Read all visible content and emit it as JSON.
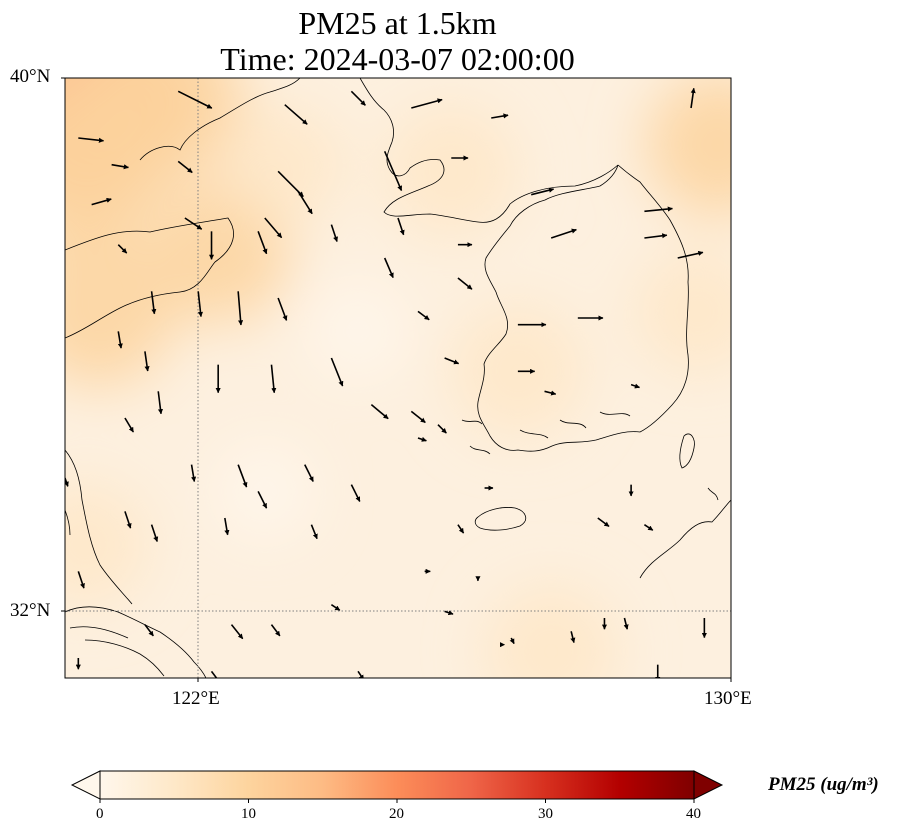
{
  "title": {
    "line1": "PM25 at 1.5km",
    "line2": "Time: 2024-03-07 02:00:00"
  },
  "map": {
    "lon_range": [
      120,
      130
    ],
    "lat_range": [
      31,
      40
    ],
    "lat_ticks": [
      {
        "value": 40,
        "label": "40°N"
      },
      {
        "value": 32,
        "label": "32°N"
      }
    ],
    "lon_ticks": [
      {
        "value": 122,
        "label": "122°E"
      },
      {
        "value": 130,
        "label": "130°E"
      }
    ],
    "gridlines": {
      "lons": [
        122
      ],
      "lats": [
        32
      ],
      "style": "dotted"
    }
  },
  "colorbar": {
    "label": "PM25 (ug/m³)",
    "min": 0,
    "max": 40,
    "ticks": [
      "0",
      "10",
      "20",
      "30",
      "40"
    ],
    "colormap": "OrRd",
    "extend": "both",
    "colors": [
      "#fff7ec",
      "#fee8c8",
      "#fdd49e",
      "#fdbb84",
      "#fc8d59",
      "#ef6548",
      "#d7301f",
      "#b30000",
      "#7f0000"
    ]
  },
  "field": {
    "background": "#fdf0df",
    "patches": [
      {
        "lon": 120.4,
        "lat": 39.6,
        "value": 16
      },
      {
        "lon": 120.2,
        "lat": 38.6,
        "value": 11
      },
      {
        "lon": 121.5,
        "lat": 39.7,
        "value": 10
      },
      {
        "lon": 120.5,
        "lat": 36.5,
        "value": 9
      },
      {
        "lon": 122.3,
        "lat": 37.4,
        "value": 8
      },
      {
        "lon": 125.8,
        "lat": 38.6,
        "value": 7
      },
      {
        "lon": 129.8,
        "lat": 39.0,
        "value": 8
      },
      {
        "lon": 129.5,
        "lat": 36.5,
        "value": 6
      },
      {
        "lon": 126.8,
        "lat": 35.6,
        "value": 7
      },
      {
        "lon": 127.3,
        "lat": 31.4,
        "value": 7
      },
      {
        "lon": 120.3,
        "lat": 33.0,
        "value": 6
      },
      {
        "lon": 123.3,
        "lat": 38.7,
        "value": 5
      },
      {
        "lon": 124.4,
        "lat": 36.2,
        "value": 2
      },
      {
        "lon": 123.0,
        "lat": 33.8,
        "value": 2
      }
    ]
  },
  "wind": [
    {
      "lon": 121.7,
      "lat": 39.8,
      "u": 1.2,
      "v": -0.6
    },
    {
      "lon": 123.3,
      "lat": 39.6,
      "u": 0.8,
      "v": -0.7
    },
    {
      "lon": 124.3,
      "lat": 39.8,
      "u": 0.5,
      "v": -0.5
    },
    {
      "lon": 125.2,
      "lat": 39.55,
      "u": 1.1,
      "v": 0.3
    },
    {
      "lon": 126.4,
      "lat": 39.4,
      "u": 0.6,
      "v": 0.1
    },
    {
      "lon": 129.4,
      "lat": 39.55,
      "u": 0.1,
      "v": 0.7
    },
    {
      "lon": 120.2,
      "lat": 39.1,
      "u": 0.9,
      "v": -0.1
    },
    {
      "lon": 120.7,
      "lat": 38.7,
      "u": 0.6,
      "v": -0.1
    },
    {
      "lon": 121.7,
      "lat": 38.75,
      "u": 0.5,
      "v": -0.4
    },
    {
      "lon": 123.2,
      "lat": 38.6,
      "u": 0.9,
      "v": -0.9
    },
    {
      "lon": 124.8,
      "lat": 38.9,
      "u": 0.6,
      "v": -1.4
    },
    {
      "lon": 125.8,
      "lat": 38.8,
      "u": 0.6,
      "v": 0.0
    },
    {
      "lon": 127.0,
      "lat": 38.25,
      "u": 0.8,
      "v": 0.2
    },
    {
      "lon": 123.5,
      "lat": 38.3,
      "u": 0.5,
      "v": -0.8
    },
    {
      "lon": 128.7,
      "lat": 38.0,
      "u": 1.0,
      "v": 0.1
    },
    {
      "lon": 120.4,
      "lat": 38.1,
      "u": 0.7,
      "v": 0.2
    },
    {
      "lon": 123.0,
      "lat": 37.9,
      "u": 0.6,
      "v": -0.7
    },
    {
      "lon": 121.8,
      "lat": 37.9,
      "u": 0.6,
      "v": -0.4
    },
    {
      "lon": 125.0,
      "lat": 37.9,
      "u": 0.2,
      "v": -0.6
    },
    {
      "lon": 122.2,
      "lat": 37.7,
      "u": 0.0,
      "v": -1.0
    },
    {
      "lon": 120.8,
      "lat": 37.5,
      "u": 0.3,
      "v": -0.3
    },
    {
      "lon": 122.9,
      "lat": 37.7,
      "u": 0.3,
      "v": -0.8
    },
    {
      "lon": 124.0,
      "lat": 37.8,
      "u": 0.2,
      "v": -0.6
    },
    {
      "lon": 125.9,
      "lat": 37.5,
      "u": 0.5,
      "v": 0.0
    },
    {
      "lon": 127.3,
      "lat": 37.6,
      "u": 0.9,
      "v": 0.3
    },
    {
      "lon": 128.7,
      "lat": 37.6,
      "u": 0.8,
      "v": 0.1
    },
    {
      "lon": 124.8,
      "lat": 37.3,
      "u": 0.3,
      "v": -0.7
    },
    {
      "lon": 125.9,
      "lat": 37.0,
      "u": 0.5,
      "v": -0.4
    },
    {
      "lon": 129.2,
      "lat": 37.3,
      "u": 0.9,
      "v": 0.2
    },
    {
      "lon": 121.3,
      "lat": 36.8,
      "u": 0.1,
      "v": -0.8
    },
    {
      "lon": 122.0,
      "lat": 36.8,
      "u": 0.1,
      "v": -0.9
    },
    {
      "lon": 122.6,
      "lat": 36.8,
      "u": 0.1,
      "v": -1.2
    },
    {
      "lon": 123.2,
      "lat": 36.7,
      "u": 0.3,
      "v": -0.8
    },
    {
      "lon": 125.3,
      "lat": 36.5,
      "u": 0.4,
      "v": -0.3
    },
    {
      "lon": 126.8,
      "lat": 36.3,
      "u": 1.0,
      "v": 0.0
    },
    {
      "lon": 127.7,
      "lat": 36.4,
      "u": 0.9,
      "v": 0.0
    },
    {
      "lon": 120.8,
      "lat": 36.2,
      "u": 0.1,
      "v": -0.6
    },
    {
      "lon": 121.2,
      "lat": 35.9,
      "u": 0.1,
      "v": -0.7
    },
    {
      "lon": 122.3,
      "lat": 35.7,
      "u": 0.0,
      "v": -1.0
    },
    {
      "lon": 123.1,
      "lat": 35.7,
      "u": 0.1,
      "v": -1.0
    },
    {
      "lon": 124.0,
      "lat": 35.8,
      "u": 0.4,
      "v": -1.0
    },
    {
      "lon": 125.7,
      "lat": 35.8,
      "u": 0.5,
      "v": -0.2
    },
    {
      "lon": 126.8,
      "lat": 35.6,
      "u": 0.6,
      "v": 0.0
    },
    {
      "lon": 121.4,
      "lat": 35.3,
      "u": 0.1,
      "v": -0.8
    },
    {
      "lon": 120.9,
      "lat": 34.9,
      "u": 0.3,
      "v": -0.5
    },
    {
      "lon": 124.6,
      "lat": 35.1,
      "u": 0.6,
      "v": -0.5
    },
    {
      "lon": 125.2,
      "lat": 35.0,
      "u": 0.5,
      "v": -0.4
    },
    {
      "lon": 125.6,
      "lat": 34.8,
      "u": 0.3,
      "v": -0.3
    },
    {
      "lon": 125.3,
      "lat": 34.6,
      "u": 0.3,
      "v": -0.1
    },
    {
      "lon": 127.2,
      "lat": 35.3,
      "u": 0.4,
      "v": -0.1
    },
    {
      "lon": 128.5,
      "lat": 35.4,
      "u": 0.3,
      "v": -0.1
    },
    {
      "lon": 120.0,
      "lat": 34.0,
      "u": 0.1,
      "v": -0.3
    },
    {
      "lon": 121.9,
      "lat": 34.2,
      "u": 0.1,
      "v": -0.6
    },
    {
      "lon": 122.6,
      "lat": 34.2,
      "u": 0.3,
      "v": -0.8
    },
    {
      "lon": 123.6,
      "lat": 34.2,
      "u": 0.3,
      "v": -0.6
    },
    {
      "lon": 122.9,
      "lat": 33.8,
      "u": 0.3,
      "v": -0.6
    },
    {
      "lon": 124.3,
      "lat": 33.9,
      "u": 0.3,
      "v": -0.6
    },
    {
      "lon": 126.3,
      "lat": 33.85,
      "u": 0.3,
      "v": 0.0
    },
    {
      "lon": 128.5,
      "lat": 33.9,
      "u": 0.0,
      "v": -0.4
    },
    {
      "lon": 120.9,
      "lat": 33.5,
      "u": 0.2,
      "v": -0.6
    },
    {
      "lon": 122.4,
      "lat": 33.4,
      "u": 0.1,
      "v": -0.6
    },
    {
      "lon": 123.7,
      "lat": 33.3,
      "u": 0.2,
      "v": -0.5
    },
    {
      "lon": 121.3,
      "lat": 33.3,
      "u": 0.2,
      "v": -0.6
    },
    {
      "lon": 125.9,
      "lat": 33.3,
      "u": 0.2,
      "v": -0.3
    },
    {
      "lon": 128.0,
      "lat": 33.4,
      "u": 0.4,
      "v": -0.3
    },
    {
      "lon": 128.7,
      "lat": 33.3,
      "u": 0.3,
      "v": -0.2
    },
    {
      "lon": 120.2,
      "lat": 32.6,
      "u": 0.2,
      "v": -0.6
    },
    {
      "lon": 126.2,
      "lat": 32.5,
      "u": 0.0,
      "v": -0.1
    },
    {
      "lon": 125.4,
      "lat": 32.6,
      "u": 0.2,
      "v": 0.0
    },
    {
      "lon": 124.0,
      "lat": 32.1,
      "u": 0.3,
      "v": -0.2
    },
    {
      "lon": 125.7,
      "lat": 32.0,
      "u": 0.3,
      "v": -0.1
    },
    {
      "lon": 122.5,
      "lat": 31.8,
      "u": 0.4,
      "v": -0.5
    },
    {
      "lon": 123.1,
      "lat": 31.8,
      "u": 0.3,
      "v": -0.4
    },
    {
      "lon": 121.2,
      "lat": 31.8,
      "u": 0.3,
      "v": -0.4
    },
    {
      "lon": 127.6,
      "lat": 31.7,
      "u": 0.1,
      "v": -0.4
    },
    {
      "lon": 128.1,
      "lat": 31.9,
      "u": 0.0,
      "v": -0.4
    },
    {
      "lon": 128.4,
      "lat": 31.9,
      "u": 0.1,
      "v": -0.4
    },
    {
      "lon": 129.6,
      "lat": 31.9,
      "u": 0.0,
      "v": -0.7
    },
    {
      "lon": 126.7,
      "lat": 31.6,
      "u": 0.1,
      "v": -0.2
    },
    {
      "lon": 126.6,
      "lat": 31.5,
      "u": 0.0,
      "v": 0.0
    },
    {
      "lon": 120.2,
      "lat": 31.3,
      "u": 0.0,
      "v": -0.4
    },
    {
      "lon": 122.2,
      "lat": 31.1,
      "u": 0.3,
      "v": -0.4
    },
    {
      "lon": 124.4,
      "lat": 31.1,
      "u": 0.2,
      "v": -0.3
    },
    {
      "lon": 128.9,
      "lat": 31.2,
      "u": 0.0,
      "v": -0.6
    }
  ]
}
